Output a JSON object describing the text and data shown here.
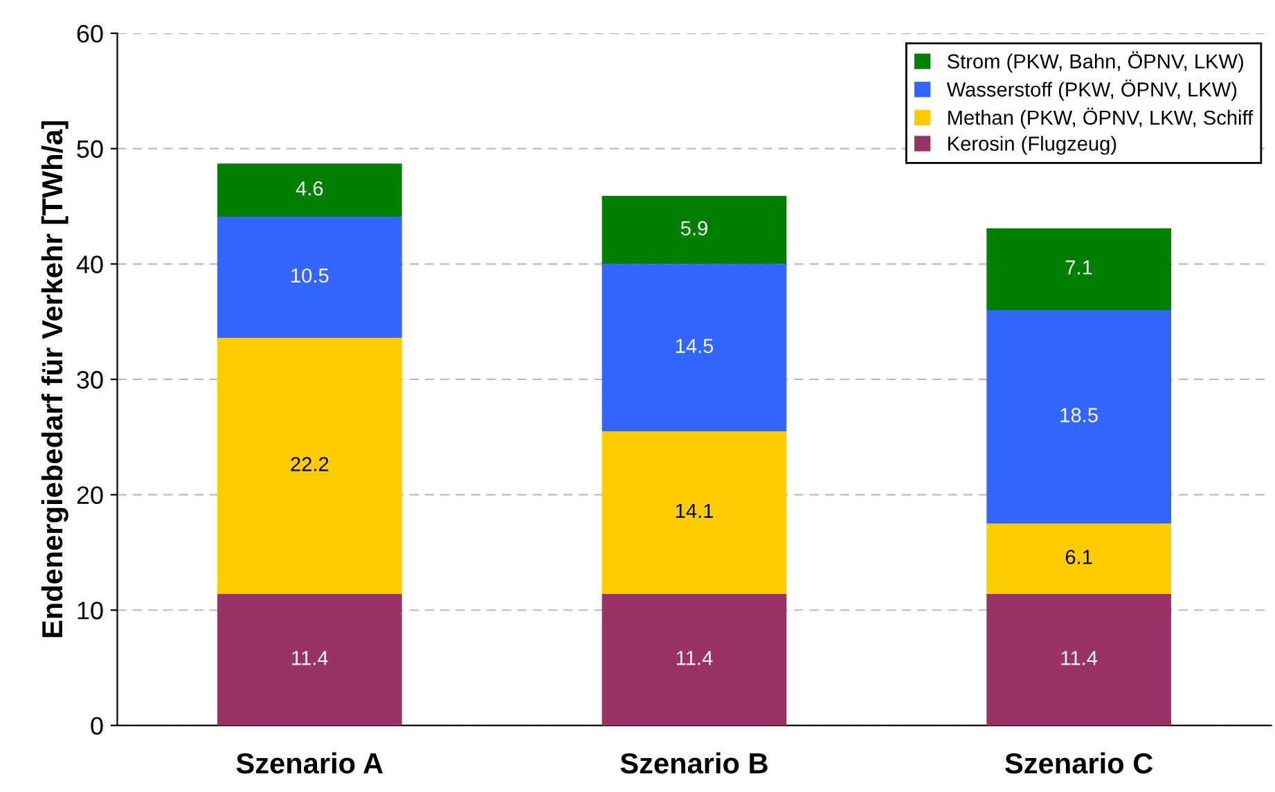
{
  "chart_data": {
    "type": "bar",
    "stacked": true,
    "ylabel": "Endenergiebedarf für Verkehr [TWh/a]",
    "categories": [
      "Szenario A",
      "Szenario B",
      "Szenario C"
    ],
    "series": [
      {
        "name": "Kerosin (Flugzeug)",
        "color": "#993366",
        "values": [
          11.4,
          11.4,
          11.4
        ]
      },
      {
        "name": "Methan (PKW, ÖPNV, LKW, Schiff",
        "color": "#ffcc00",
        "values": [
          22.2,
          14.1,
          6.1
        ]
      },
      {
        "name": "Wasserstoff (PKW, ÖPNV, LKW)",
        "color": "#3366ff",
        "values": [
          10.5,
          14.5,
          18.5
        ]
      },
      {
        "name": "Strom (PKW, Bahn, ÖPNV, LKW)",
        "color": "#008000",
        "values": [
          4.6,
          5.9,
          7.1
        ]
      }
    ],
    "ylim": [
      0,
      60
    ],
    "yticks": [
      0,
      10,
      20,
      30,
      40,
      50,
      60
    ],
    "grid": "y",
    "legend": "top right",
    "data_labels": true
  }
}
